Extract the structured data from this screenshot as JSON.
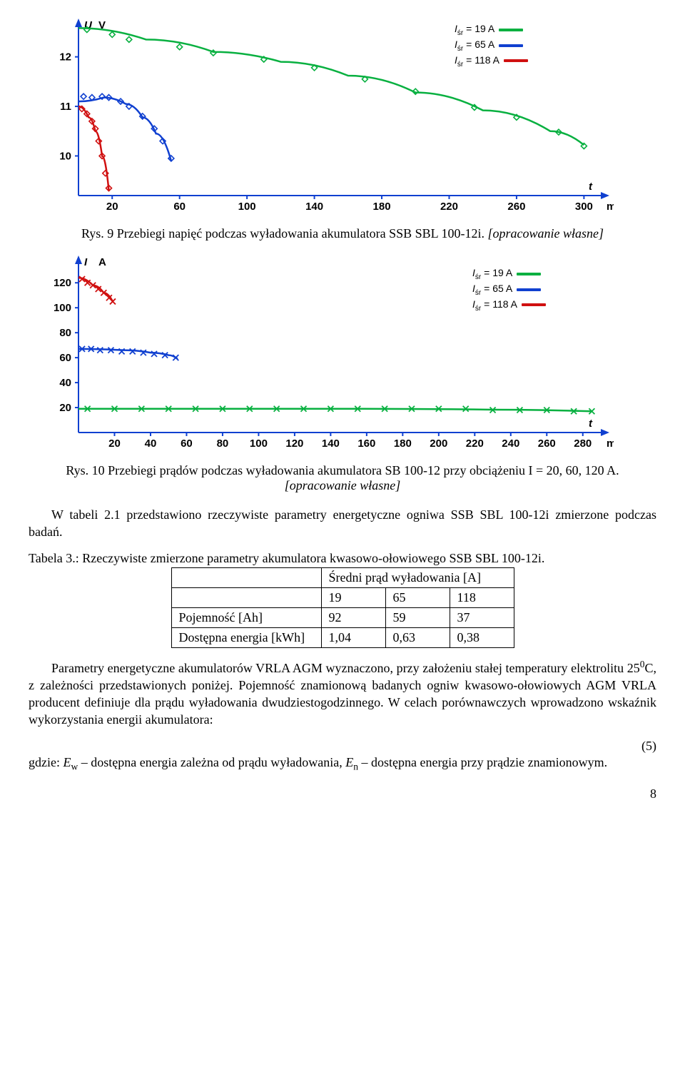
{
  "chart1": {
    "type": "scatter_line",
    "ylabel": "U",
    "yunit": "V",
    "xlabel": "t",
    "xunit": "min",
    "ylim": [
      9.2,
      12.6
    ],
    "yticks": [
      10,
      11,
      12
    ],
    "xlim": [
      0,
      310
    ],
    "xticks": [
      20,
      60,
      100,
      140,
      180,
      220,
      260,
      300
    ],
    "legend": [
      {
        "label_var": "I",
        "label_sub": "śr",
        "label_rest": " = 19 A",
        "color": "#08b040"
      },
      {
        "label_var": "I",
        "label_sub": "śr",
        "label_rest": " = 65 A",
        "color": "#1040d0"
      },
      {
        "label_var": "I",
        "label_sub": "śr",
        "label_rest": " = 118 A",
        "color": "#d01010"
      }
    ],
    "series": [
      {
        "color": "#08b040",
        "marker": "diamond",
        "points": [
          [
            5,
            12.55
          ],
          [
            20,
            12.45
          ],
          [
            30,
            12.35
          ],
          [
            60,
            12.2
          ],
          [
            80,
            12.08
          ],
          [
            110,
            11.95
          ],
          [
            140,
            11.78
          ],
          [
            170,
            11.55
          ],
          [
            200,
            11.3
          ],
          [
            235,
            10.98
          ],
          [
            260,
            10.78
          ],
          [
            285,
            10.48
          ],
          [
            300,
            10.2
          ]
        ],
        "curve": [
          [
            0,
            12.58
          ],
          [
            40,
            12.35
          ],
          [
            80,
            12.1
          ],
          [
            120,
            11.9
          ],
          [
            160,
            11.62
          ],
          [
            200,
            11.28
          ],
          [
            240,
            10.92
          ],
          [
            280,
            10.5
          ],
          [
            300,
            10.22
          ]
        ]
      },
      {
        "color": "#1040d0",
        "marker": "diamond",
        "points": [
          [
            3,
            11.2
          ],
          [
            8,
            11.18
          ],
          [
            14,
            11.2
          ],
          [
            18,
            11.18
          ],
          [
            25,
            11.1
          ],
          [
            30,
            11.0
          ],
          [
            38,
            10.8
          ],
          [
            45,
            10.55
          ],
          [
            50,
            10.3
          ],
          [
            55,
            9.95
          ]
        ],
        "curve": [
          [
            0,
            11.1
          ],
          [
            15,
            11.18
          ],
          [
            28,
            11.05
          ],
          [
            38,
            10.78
          ],
          [
            46,
            10.45
          ],
          [
            55,
            9.9
          ]
        ]
      },
      {
        "color": "#d01010",
        "marker": "diamond",
        "points": [
          [
            2,
            10.95
          ],
          [
            5,
            10.85
          ],
          [
            8,
            10.7
          ],
          [
            10,
            10.55
          ],
          [
            12,
            10.3
          ],
          [
            14,
            10.0
          ],
          [
            16,
            9.65
          ],
          [
            18,
            9.35
          ]
        ],
        "curve": [
          [
            0,
            11.0
          ],
          [
            6,
            10.78
          ],
          [
            10,
            10.5
          ],
          [
            14,
            10.0
          ],
          [
            18,
            9.3
          ]
        ]
      }
    ],
    "axis_color": "#1040d0",
    "label_fontsize": 15,
    "tick_fontsize": 15
  },
  "caption1_prefix": "Rys. 9 Przebiegi napięć podczas wyładowania akumulatora SSB SBL 100-12i. ",
  "caption1_ital": "[opracowanie własne]",
  "chart2": {
    "type": "scatter_line",
    "ylabel": "I",
    "yunit": "A",
    "xlabel": "t",
    "xunit": "min",
    "ylim": [
      0,
      135
    ],
    "yticks": [
      20,
      40,
      60,
      80,
      100,
      120
    ],
    "xlim": [
      0,
      290
    ],
    "xticks": [
      20,
      40,
      60,
      80,
      100,
      120,
      140,
      160,
      180,
      200,
      220,
      240,
      260,
      280
    ],
    "legend": [
      {
        "label_var": "I",
        "label_sub": "śr",
        "label_rest": " = 19 A",
        "color": "#08b040"
      },
      {
        "label_var": "I",
        "label_sub": "śr",
        "label_rest": " = 65 A",
        "color": "#1040d0"
      },
      {
        "label_var": "I",
        "label_sub": "śr",
        "label_rest": " = 118 A",
        "color": "#d01010"
      }
    ],
    "series": [
      {
        "color": "#d01010",
        "marker": "x",
        "points": [
          [
            2,
            123
          ],
          [
            5,
            120
          ],
          [
            8,
            118
          ],
          [
            11,
            115
          ],
          [
            14,
            112
          ],
          [
            17,
            108
          ],
          [
            19,
            105
          ]
        ],
        "curve": [
          [
            0,
            124
          ],
          [
            8,
            118
          ],
          [
            14,
            112
          ],
          [
            19,
            105
          ]
        ]
      },
      {
        "color": "#1040d0",
        "marker": "x",
        "points": [
          [
            2,
            67
          ],
          [
            7,
            67
          ],
          [
            12,
            66
          ],
          [
            18,
            66
          ],
          [
            24,
            65
          ],
          [
            30,
            65
          ],
          [
            36,
            64
          ],
          [
            42,
            63
          ],
          [
            48,
            62
          ],
          [
            54,
            60
          ]
        ],
        "curve": [
          [
            0,
            67
          ],
          [
            25,
            66
          ],
          [
            40,
            64
          ],
          [
            50,
            62
          ],
          [
            55,
            59
          ]
        ]
      },
      {
        "color": "#08b040",
        "marker": "x",
        "points": [
          [
            5,
            19
          ],
          [
            20,
            19
          ],
          [
            35,
            19
          ],
          [
            50,
            19
          ],
          [
            65,
            19
          ],
          [
            80,
            19
          ],
          [
            95,
            19
          ],
          [
            110,
            19
          ],
          [
            125,
            19
          ],
          [
            140,
            19
          ],
          [
            155,
            19
          ],
          [
            170,
            19
          ],
          [
            185,
            19
          ],
          [
            200,
            19
          ],
          [
            215,
            19
          ],
          [
            230,
            18
          ],
          [
            245,
            18
          ],
          [
            260,
            18
          ],
          [
            275,
            17
          ],
          [
            285,
            17
          ]
        ],
        "curve": [
          [
            0,
            19
          ],
          [
            150,
            19
          ],
          [
            230,
            18.3
          ],
          [
            285,
            17
          ]
        ]
      }
    ],
    "axis_color": "#1040d0",
    "label_fontsize": 15,
    "tick_fontsize": 15
  },
  "caption2_prefix": "Rys. 10 Przebiegi prądów podczas wyładowania akumulatora SB 100-12 przy obciążeniu I = 20, 60, 120 A. ",
  "caption2_ital": "[opracowanie własne]",
  "para_intro": "W tabeli 2.1 przedstawiono rzeczywiste parametry energetyczne ogniwa SSB SBL 100-12i zmierzone podczas badań.",
  "table": {
    "caption": "Tabela 3.: Rzeczywiste zmierzone parametry akumulatora kwasowo-ołowiowego SSB SBL 100-12i.",
    "head_merged": "Średni prąd wyładowania [A]",
    "cols": [
      "19",
      "65",
      "118"
    ],
    "rows": [
      {
        "label": "Pojemność [Ah]",
        "v": [
          "92",
          "59",
          "37"
        ]
      },
      {
        "label": "Dostępna energia [kWh]",
        "v": [
          "1,04",
          "0,63",
          "0,38"
        ]
      }
    ]
  },
  "para_body_html": "Parametry energetyczne akumulatorów VRLA AGM wyznaczono, przy założeniu stałej temperatury elektrolitu 25<sup>0</sup>C, z zależności przedstawionych poniżej. Pojemność znamionową badanych ogniw kwasowo-ołowiowych AGM VRLA producent definiuje dla prądu wyładowania dwudziestogodzinnego. W celach porównawczych wprowadzono wskaźnik wykorzystania energii akumulatora:",
  "eq_num": "(5)",
  "para_eq_after_html": "gdzie: <i>E</i><sub>w</sub> – dostępna energia zależna od prądu wyładowania, <i>E</i><sub>n</sub> – dostępna energia przy prądzie znamionowym.",
  "page_number": "8"
}
